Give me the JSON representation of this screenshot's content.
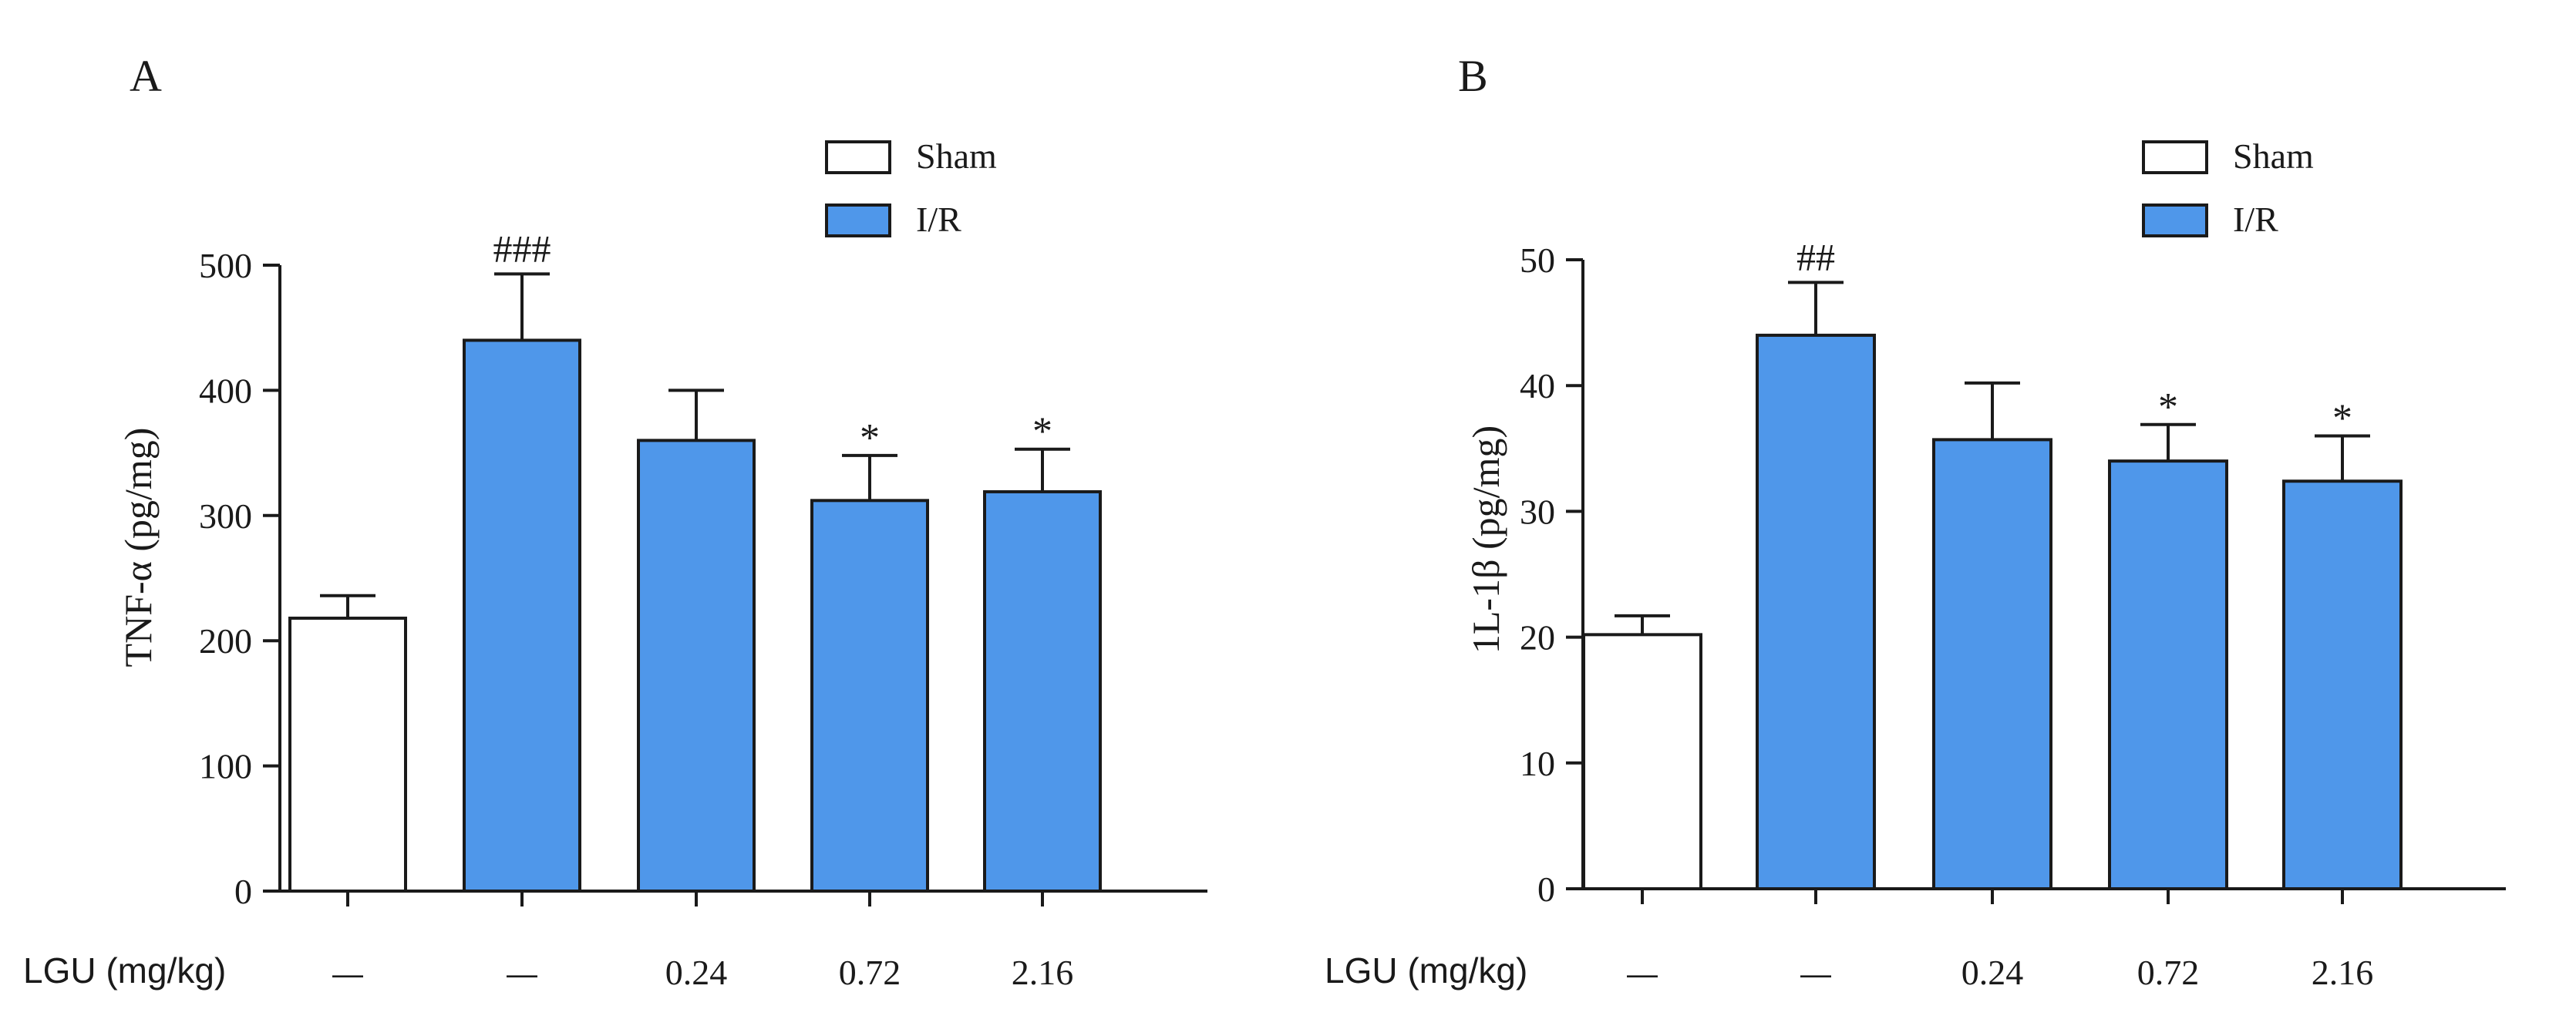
{
  "colors": {
    "ir_fill": "#4F97EA",
    "sham_fill": "#FFFFFF",
    "stroke": "#1A1A1A"
  },
  "chart_data": [
    {
      "panel_label": "A",
      "type": "bar",
      "ylabel": "TNF-α (pg/mg)",
      "ylim": [
        0,
        500
      ],
      "yticks": [
        0,
        100,
        200,
        300,
        400,
        500
      ],
      "xlabel": "LGU (mg/kg)",
      "categories": [
        "—",
        "—",
        "0.24",
        "0.72",
        "2.16"
      ],
      "groups": [
        "Sham",
        "I/R",
        "I/R",
        "I/R",
        "I/R"
      ],
      "values": [
        218,
        440,
        360,
        312,
        319
      ],
      "errors": [
        18,
        53,
        40,
        36,
        34
      ],
      "annotations": [
        "",
        "###",
        "",
        "*",
        "*"
      ],
      "legend": [
        {
          "label": "Sham",
          "group": "Sham"
        },
        {
          "label": "I/R",
          "group": "I/R"
        }
      ],
      "legend_position": "top-right"
    },
    {
      "panel_label": "B",
      "type": "bar",
      "ylabel": "1L-1β (pg/mg)",
      "ylim": [
        0,
        50
      ],
      "yticks": [
        0,
        10,
        20,
        30,
        40,
        50
      ],
      "xlabel": "LGU (mg/kg)",
      "categories": [
        "—",
        "—",
        "0.24",
        "0.72",
        "2.16"
      ],
      "groups": [
        "Sham",
        "I/R",
        "I/R",
        "I/R",
        "I/R"
      ],
      "values": [
        20.2,
        44.0,
        35.7,
        34.0,
        32.4
      ],
      "errors": [
        1.5,
        4.2,
        4.5,
        2.9,
        3.6
      ],
      "annotations": [
        "",
        "##",
        "",
        "*",
        "*"
      ],
      "legend": [
        {
          "label": "Sham",
          "group": "Sham"
        },
        {
          "label": "I/R",
          "group": "I/R"
        }
      ],
      "legend_position": "top-right"
    }
  ]
}
